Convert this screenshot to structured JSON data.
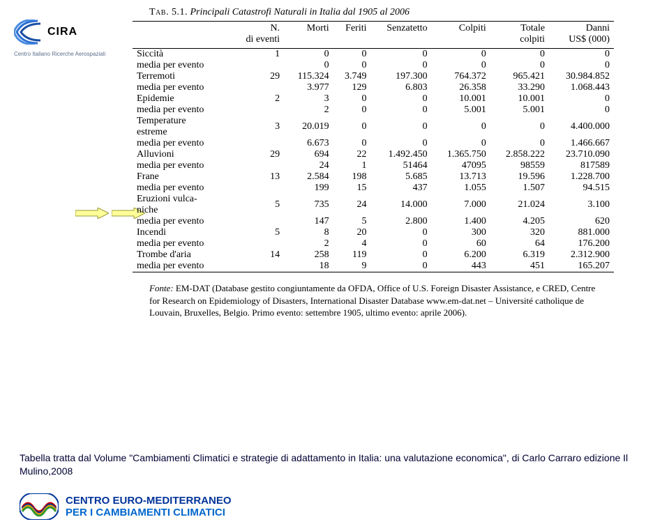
{
  "logo": {
    "cira_text": "CIRA",
    "cira_subtitle": "Centro Italiano Ricerche Aerospaziali"
  },
  "table": {
    "title_label": "Tab. 5.1.",
    "title_rest": "Principali Catastrofi Naturali in Italia dal 1905 al 2006",
    "headers": {
      "blank": "",
      "n_eventi": "N. di eventi",
      "morti": "Morti",
      "feriti": "Feriti",
      "senzatetto": "Senzatetto",
      "colpiti": "Colpiti",
      "totale_colpiti": "Totale colpiti",
      "danni": "Danni US$ (000)"
    },
    "row_pairs": [
      {
        "name": "Siccità",
        "media_label": "media per evento",
        "main": [
          "1",
          "0",
          "0",
          "0",
          "0",
          "0",
          "0"
        ],
        "media": [
          "",
          "0",
          "0",
          "0",
          "0",
          "0",
          "0"
        ]
      },
      {
        "name": "Terremoti",
        "media_label": "media per evento",
        "main": [
          "29",
          "115.324",
          "3.749",
          "197.300",
          "764.372",
          "965.421",
          "30.984.852"
        ],
        "media": [
          "",
          "3.977",
          "129",
          "6.803",
          "26.358",
          "33.290",
          "1.068.443"
        ]
      },
      {
        "name": "Epidemie",
        "media_label": "media per evento",
        "main": [
          "2",
          "3",
          "0",
          "0",
          "10.001",
          "10.001",
          "0"
        ],
        "media": [
          "",
          "2",
          "0",
          "0",
          "5.001",
          "5.001",
          "0"
        ]
      },
      {
        "name": "Temperature estreme",
        "media_label": "media per evento",
        "main": [
          "3",
          "20.019",
          "0",
          "0",
          "0",
          "0",
          "4.400.000"
        ],
        "media": [
          "",
          "6.673",
          "0",
          "0",
          "0",
          "0",
          "1.466.667"
        ]
      },
      {
        "name": "Alluvioni",
        "media_label": "media per evento",
        "main": [
          "29",
          "694",
          "22",
          "1.492.450",
          "1.365.750",
          "2.858.222",
          "23.710.090"
        ],
        "media": [
          "",
          "24",
          "1",
          "51464",
          "47095",
          "98559",
          "817589"
        ]
      },
      {
        "name": "Frane",
        "media_label": "media per evento",
        "main": [
          "13",
          "2.584",
          "198",
          "5.685",
          "13.713",
          "19.596",
          "1.228.700"
        ],
        "media": [
          "",
          "199",
          "15",
          "437",
          "1.055",
          "1.507",
          "94.515"
        ]
      },
      {
        "name": "Eruzioni vulcaniche",
        "media_label": "media per evento",
        "main": [
          "5",
          "735",
          "24",
          "14.000",
          "7.000",
          "21.024",
          "3.100"
        ],
        "media": [
          "",
          "147",
          "5",
          "2.800",
          "1.400",
          "4.205",
          "620"
        ]
      },
      {
        "name": "Incendi",
        "media_label": "media per evento",
        "main": [
          "5",
          "8",
          "20",
          "0",
          "300",
          "320",
          "881.000"
        ],
        "media": [
          "",
          "2",
          "4",
          "0",
          "60",
          "64",
          "176.200"
        ]
      },
      {
        "name": "Trombe d'aria",
        "media_label": "media per evento",
        "main": [
          "14",
          "258",
          "119",
          "0",
          "6.200",
          "6.319",
          "2.312.900"
        ],
        "media": [
          "",
          "18",
          "9",
          "0",
          "443",
          "451",
          "165.207"
        ]
      }
    ],
    "fonte_label": "Fonte:",
    "fonte_text": "EM-DAT (Database gestito congiuntamente da OFDA, Office of U.S. Foreign Disaster Assistance, e CRED, Centre for Research on Epidemiology of Disasters, International Disaster Database www.em-dat.net – Université catholique de Louvain, Bruxelles, Belgio. Primo evento: settembre 1905, ultimo evento: aprile 2006)."
  },
  "arrows": {
    "fill": "#ffff99",
    "stroke": "#999933"
  },
  "caption": {
    "text": "Tabella tratta dal Volume \"Cambiamenti Climatici e strategie di adattamento in Italia: una valutazione economica\", di Carlo Carraro edizione Il Mulino,2008"
  },
  "footer": {
    "line1": "CENTRO EURO-MEDITERRANEO",
    "line2": "PER I CAMBIAMENTI CLIMATICI",
    "wave_colors": [
      "#cc0000",
      "#003399",
      "#ff9900",
      "#339933"
    ]
  }
}
